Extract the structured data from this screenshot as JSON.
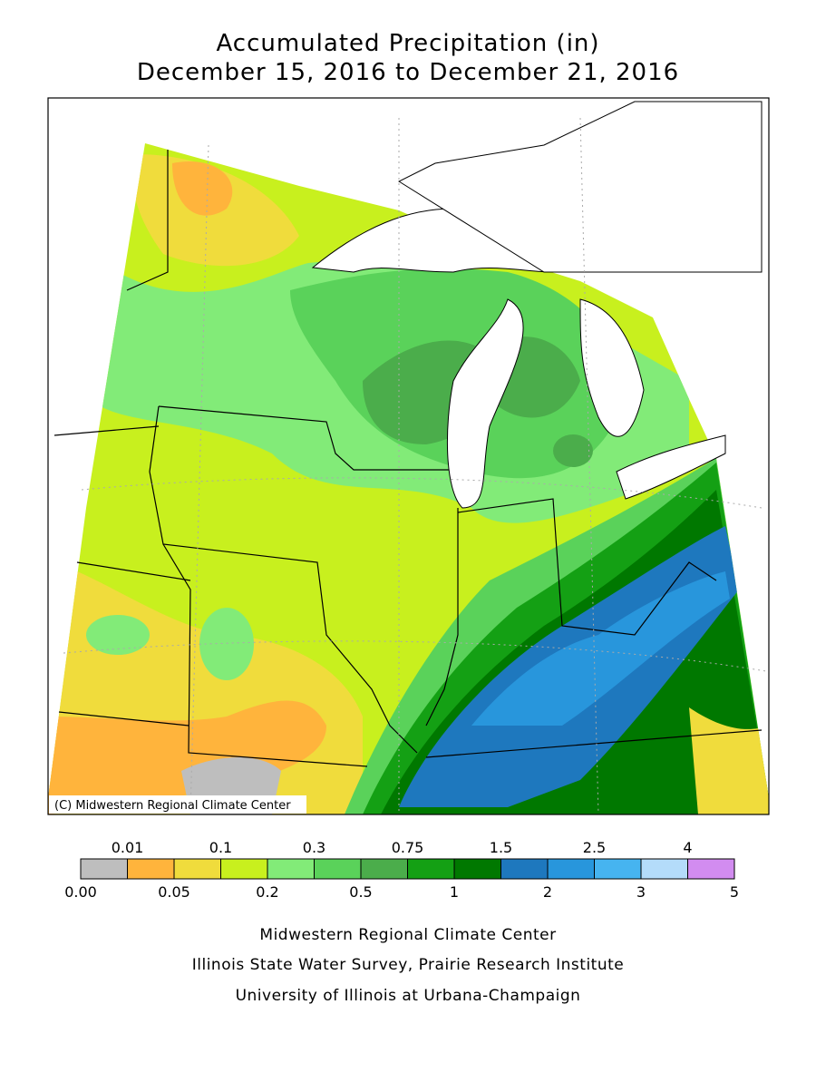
{
  "header": {
    "title": "Accumulated Precipitation (in)",
    "subtitle": "December 15, 2016 to December 21, 2016"
  },
  "map": {
    "credit": "(C) Midwestern Regional Climate Center"
  },
  "legend": {
    "colors": [
      "#bebebe",
      "#ffb43c",
      "#f0dc3c",
      "#c8f01e",
      "#82eb78",
      "#5ad25a",
      "#4bad4b",
      "#14a014",
      "#007800",
      "#1e78be",
      "#2896dc",
      "#46b4f0",
      "#b4dcfa",
      "#d28cf0"
    ],
    "upper_labels": [
      "0.01",
      "0.1",
      "0.3",
      "0.75",
      "1.5",
      "2.5",
      "4"
    ],
    "lower_labels": [
      "0.00",
      "0.05",
      "0.2",
      "0.5",
      "1",
      "2",
      "3",
      "5"
    ]
  },
  "footer": {
    "lines": [
      "Midwestern Regional Climate Center",
      "Illinois State Water Survey, Prairie Research Institute",
      "University of Illinois at Urbana-Champaign"
    ]
  }
}
